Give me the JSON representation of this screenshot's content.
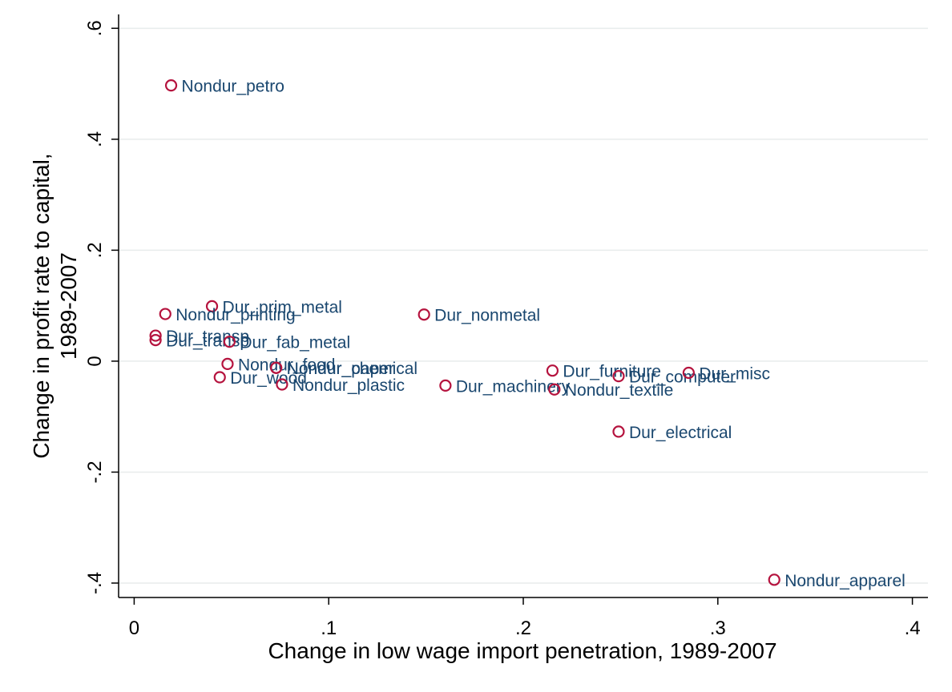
{
  "chart_data": {
    "type": "scatter",
    "title": "",
    "xlabel": "Change in low wage import penetration, 1989-2007",
    "ylabel_lines": [
      "Change in profit rate to capital,",
      "1989-2007"
    ],
    "xlim": [
      -0.008,
      0.408
    ],
    "ylim": [
      -0.426,
      0.625
    ],
    "xticks": [
      {
        "value": 0,
        "label": "0"
      },
      {
        "value": 0.1,
        "label": ".1"
      },
      {
        "value": 0.2,
        "label": ".2"
      },
      {
        "value": 0.3,
        "label": ".3"
      },
      {
        "value": 0.4,
        "label": ".4"
      }
    ],
    "yticks": [
      {
        "value": -0.4,
        "label": "-.4"
      },
      {
        "value": -0.2,
        "label": "-.2"
      },
      {
        "value": 0,
        "label": "0"
      },
      {
        "value": 0.2,
        "label": ".2"
      },
      {
        "value": 0.4,
        "label": ".4"
      },
      {
        "value": 0.6,
        "label": ".6"
      }
    ],
    "grid": "horizontal",
    "legend": "none",
    "colors": {
      "marker": "#b5133e",
      "label": "#1a476f",
      "grid": "#e8ecec",
      "axis": "#000000"
    },
    "points": [
      {
        "label": "Nondur_petro",
        "x": 0.019,
        "y": 0.497
      },
      {
        "label": "Dur_prim_metal",
        "x": 0.04,
        "y": 0.099
      },
      {
        "label": "Nondur_printing",
        "x": 0.016,
        "y": 0.085
      },
      {
        "label": "Dur_transp",
        "x": 0.011,
        "y": 0.046
      },
      {
        "label": "Dur_transp",
        "x": 0.011,
        "y": 0.038
      },
      {
        "label": "Dur_fab_metal",
        "x": 0.049,
        "y": 0.035
      },
      {
        "label": "Nondur_chemical",
        "x": 0.073,
        "y": -0.012
      },
      {
        "label": "Nondur_food",
        "x": 0.048,
        "y": -0.005
      },
      {
        "label": "Dur_wood",
        "x": 0.044,
        "y": -0.029
      },
      {
        "label": "Nondur_paper",
        "x": 0.073,
        "y": -0.012
      },
      {
        "label": "Nondur_plastic",
        "x": 0.076,
        "y": -0.042
      },
      {
        "label": "Dur_nonmetal",
        "x": 0.149,
        "y": 0.084
      },
      {
        "label": "Dur_machinery",
        "x": 0.16,
        "y": -0.044
      },
      {
        "label": "Dur_furniture",
        "x": 0.215,
        "y": -0.017
      },
      {
        "label": "Nondur_textile",
        "x": 0.216,
        "y": -0.051
      },
      {
        "label": "Dur_computer",
        "x": 0.249,
        "y": -0.027
      },
      {
        "label": "Dur_electrical",
        "x": 0.249,
        "y": -0.127
      },
      {
        "label": "Dur_misc",
        "x": 0.285,
        "y": -0.021
      },
      {
        "label": "Nondur_apparel",
        "x": 0.329,
        "y": -0.394
      }
    ]
  }
}
